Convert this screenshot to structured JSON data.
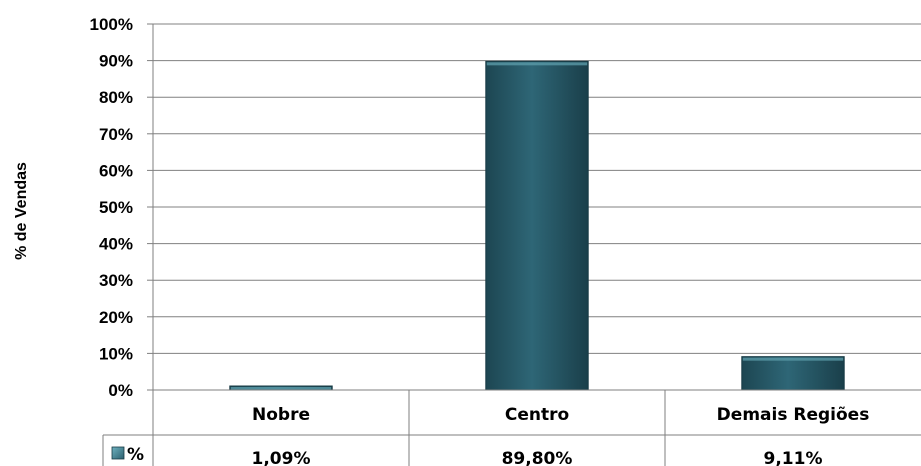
{
  "chart_data": {
    "type": "bar",
    "title": "",
    "ylabel": "% de Vendas",
    "xlabel": "",
    "categories": [
      "Nobre",
      "Centro",
      "Demais Regiões"
    ],
    "series": [
      {
        "name": "%",
        "values": [
          1.09,
          89.8,
          9.11
        ],
        "labels": [
          "1,09%",
          "89,80%",
          "9,11%"
        ]
      }
    ],
    "ylim": [
      0,
      100
    ],
    "yticks": [
      "0%",
      "10%",
      "20%",
      "30%",
      "40%",
      "50%",
      "60%",
      "70%",
      "80%",
      "90%",
      "100%"
    ],
    "grid": true,
    "legend": "data-table-left",
    "colors": {
      "bar": "#2b5f6e",
      "bar_light": "#5a9aa8",
      "bar_dark": "#173a44",
      "grid": "#808080",
      "axis": "#7f7f7f"
    }
  }
}
